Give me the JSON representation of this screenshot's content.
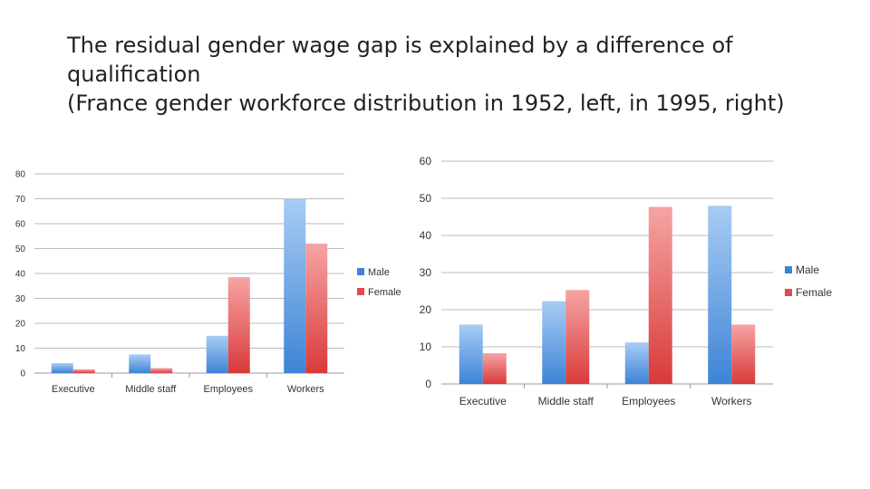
{
  "title_lines": [
    "The residual gender wage gap is explained by a difference of",
    "qualification",
    "(France gender workforce distribution in 1952, left, in 1995, right)"
  ],
  "colors": {
    "male": "#3d84d6",
    "female": "#e24b4b",
    "grid": "#bbbbbb"
  },
  "chart_data": [
    {
      "type": "bar",
      "categories": [
        "Executive",
        "Middle staff",
        "Employees",
        "Workers"
      ],
      "series": [
        {
          "name": "Male",
          "values": [
            4,
            7.5,
            15,
            70
          ]
        },
        {
          "name": "Female",
          "values": [
            1.5,
            2,
            38.5,
            52
          ]
        }
      ],
      "y_ticks": [
        0,
        10,
        20,
        30,
        40,
        50,
        60,
        70,
        80
      ],
      "ylim": [
        0,
        80
      ],
      "grid": true,
      "legend": "right"
    },
    {
      "type": "bar",
      "categories": [
        "Executive",
        "Middle staff",
        "Employees",
        "Workers"
      ],
      "series": [
        {
          "name": "Male",
          "values": [
            16,
            22.3,
            11.2,
            48
          ]
        },
        {
          "name": "Female",
          "values": [
            8.3,
            25.3,
            47.7,
            16
          ]
        }
      ],
      "y_ticks": [
        0,
        10,
        20,
        30,
        40,
        50,
        60
      ],
      "ylim": [
        0,
        60
      ],
      "grid": true,
      "legend": "right"
    }
  ]
}
